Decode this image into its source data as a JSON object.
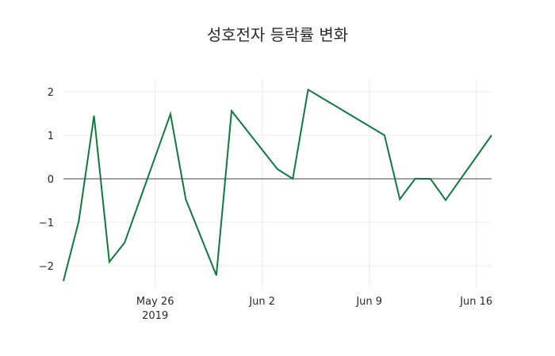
{
  "title": "성호전자 등락률 변화",
  "colors": {
    "line": "#0e7a3c",
    "grid": "#ebebeb",
    "zeroline": "#444444"
  },
  "chart_data": {
    "type": "line",
    "title": "성호전자 등락률 변화",
    "xlabel": "",
    "ylabel": "",
    "x": [
      "2019-05-20",
      "2019-05-21",
      "2019-05-22",
      "2019-05-23",
      "2019-05-24",
      "2019-05-27",
      "2019-05-28",
      "2019-05-30",
      "2019-05-31",
      "2019-06-03",
      "2019-06-04",
      "2019-06-05",
      "2019-06-10",
      "2019-06-11",
      "2019-06-12",
      "2019-06-13",
      "2019-06-14",
      "2019-06-17"
    ],
    "series": [
      {
        "name": "등락률",
        "values": [
          -2.35,
          -0.98,
          1.45,
          -1.91,
          -1.47,
          1.49,
          -0.47,
          -2.22,
          1.56,
          0.22,
          0,
          2.05,
          1.0,
          -0.47,
          0,
          0,
          -0.49,
          1.0
        ]
      }
    ],
    "ylim": [
      -2.55,
      2.3
    ],
    "yticks": [
      -2,
      -1,
      0,
      1,
      2
    ],
    "ytick_labels": [
      "−2",
      "−1",
      "0",
      "1",
      "2"
    ],
    "xticks": [
      {
        "date": "2019-05-26",
        "label": "May 26",
        "sublabel": "2019"
      },
      {
        "date": "2019-06-02",
        "label": "Jun 2",
        "sublabel": ""
      },
      {
        "date": "2019-06-09",
        "label": "Jun 9",
        "sublabel": ""
      },
      {
        "date": "2019-06-16",
        "label": "Jun 16",
        "sublabel": ""
      }
    ],
    "grid": true,
    "legend": false
  }
}
